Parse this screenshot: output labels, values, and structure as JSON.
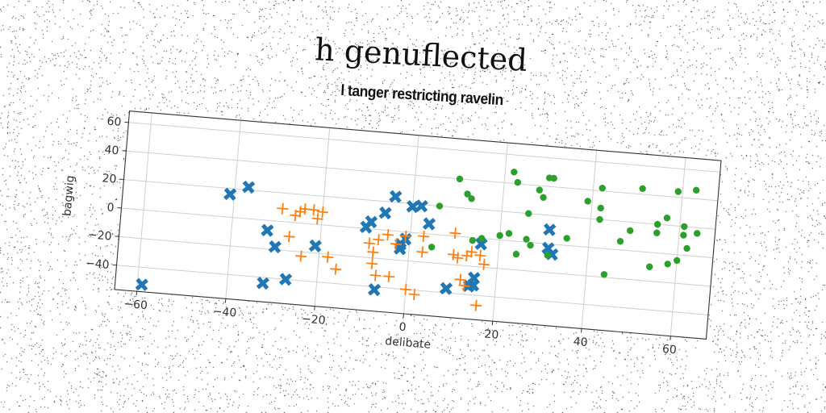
{
  "suptitle": "h genuflected",
  "chart_data": {
    "type": "scatter",
    "title": "l tanger restricting ravelin",
    "xlabel": "delibate",
    "ylabel": "bagwig",
    "xlim": [
      -65,
      68
    ],
    "ylim": [
      -57,
      68
    ],
    "xticks": [
      -60,
      -40,
      -20,
      0,
      20,
      40,
      60
    ],
    "yticks": [
      -40,
      -20,
      0,
      20,
      40,
      60
    ],
    "xtick_labels": [
      "−60",
      "−40",
      "−20",
      "0",
      "20",
      "40",
      "60"
    ],
    "ytick_labels": [
      "−40",
      "−20",
      "0",
      "20",
      "40",
      "60"
    ],
    "grid": true,
    "series": [
      {
        "color": "#1f77b4",
        "marker": "x",
        "points": [
          [
            -59,
            -52
          ],
          [
            -41,
            16
          ],
          [
            -37,
            22
          ],
          [
            -32,
            -7
          ],
          [
            -30,
            -18
          ],
          [
            -32,
            -44
          ],
          [
            -27,
            -40
          ],
          [
            -21,
            -15
          ],
          [
            -10,
            1
          ],
          [
            -9,
            5
          ],
          [
            -7,
            -42
          ],
          [
            -6,
            12
          ],
          [
            -4,
            24
          ],
          [
            -2,
            -12
          ],
          [
            -2,
            -9
          ],
          [
            -1,
            -5
          ],
          [
            0,
            18
          ],
          [
            2,
            19
          ],
          [
            4,
            7
          ],
          [
            9,
            -37
          ],
          [
            14,
            -34
          ],
          [
            15,
            -28
          ],
          [
            15,
            -33
          ],
          [
            16,
            -4
          ],
          [
            31,
            10
          ],
          [
            31,
            -3
          ],
          [
            32,
            -7
          ]
        ]
      },
      {
        "color": "#ff7f0e",
        "marker": "+",
        "points": [
          [
            -29,
            9
          ],
          [
            -26,
            5
          ],
          [
            -25,
            8
          ],
          [
            -24,
            10
          ],
          [
            -22,
            10
          ],
          [
            -21,
            4
          ],
          [
            -20,
            9
          ],
          [
            -18,
            -22
          ],
          [
            -16,
            -30
          ],
          [
            -27,
            -10
          ],
          [
            -24,
            -23
          ],
          [
            -9,
            -10
          ],
          [
            -8,
            -16
          ],
          [
            -8,
            -24
          ],
          [
            -7,
            -32
          ],
          [
            -7,
            -7
          ],
          [
            -5,
            -3
          ],
          [
            -4,
            -32
          ],
          [
            -3,
            -9
          ],
          [
            -1,
            -3
          ],
          [
            0,
            -40
          ],
          [
            2,
            -43
          ],
          [
            3,
            -13
          ],
          [
            3,
            -2
          ],
          [
            10,
            2
          ],
          [
            10,
            -13
          ],
          [
            11,
            -15
          ],
          [
            12,
            -30
          ],
          [
            13,
            -13
          ],
          [
            13,
            -34
          ],
          [
            14,
            -10
          ],
          [
            16,
            -47
          ],
          [
            16,
            -12
          ],
          [
            17,
            -18
          ]
        ]
      },
      {
        "color": "#2ca02c",
        "marker": "o",
        "points": [
          [
            5,
            -9
          ],
          [
            6,
            20
          ],
          [
            10,
            40
          ],
          [
            12,
            30
          ],
          [
            13,
            27
          ],
          [
            14,
            -2
          ],
          [
            16,
            0
          ],
          [
            20,
            3
          ],
          [
            22,
            48
          ],
          [
            22,
            5
          ],
          [
            23,
            41
          ],
          [
            24,
            -9
          ],
          [
            26,
            2
          ],
          [
            26,
            20
          ],
          [
            27,
            -2
          ],
          [
            28,
            37
          ],
          [
            29,
            32
          ],
          [
            30,
            46
          ],
          [
            31,
            46
          ],
          [
            31,
            -8
          ],
          [
            35,
            5
          ],
          [
            39,
            32
          ],
          [
            42,
            28
          ],
          [
            42,
            42
          ],
          [
            42,
            20
          ],
          [
            44,
            -18
          ],
          [
            47,
            6
          ],
          [
            49,
            14
          ],
          [
            51,
            44
          ],
          [
            54,
            -10
          ],
          [
            55,
            20
          ],
          [
            55,
            14
          ],
          [
            57,
            25
          ],
          [
            58,
            -7
          ],
          [
            59,
            44
          ],
          [
            60,
            -4
          ],
          [
            61,
            14
          ],
          [
            61,
            20
          ],
          [
            62,
            5
          ],
          [
            63,
            46
          ],
          [
            64,
            16
          ]
        ]
      }
    ]
  }
}
